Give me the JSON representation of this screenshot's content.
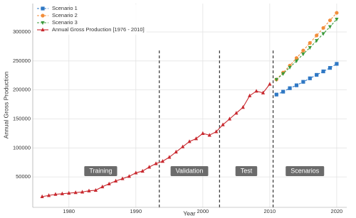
{
  "chart_data": {
    "type": "line",
    "x_label": "Year",
    "y_label": "Annual Gross Production",
    "xlim": [
      1974.6,
      2021.5
    ],
    "ylim": [
      -2500,
      349000
    ],
    "xticks": [
      1980,
      1990,
      2000,
      2010,
      2020
    ],
    "yticks": [
      50000,
      100000,
      150000,
      200000,
      250000,
      300000
    ],
    "grid": true,
    "legend": "top-left",
    "dividers": [
      1993.5,
      2002.5,
      2010.5
    ],
    "regions": [
      "Training",
      "Validation",
      "Test",
      "Scenarios"
    ],
    "series": [
      {
        "name": "Scenario 1",
        "color": "#2f78c4",
        "marker": "square",
        "dashed": true,
        "x": [
          2011,
          2012,
          2013,
          2014,
          2015,
          2016,
          2017,
          2018,
          2019,
          2020
        ],
        "values": [
          192000,
          197000,
          203000,
          208000,
          214000,
          220000,
          226000,
          232000,
          238000,
          245000
        ]
      },
      {
        "name": "Scenario 2",
        "color": "#f28e3b",
        "marker": "circle",
        "dashed": true,
        "x": [
          2011,
          2012,
          2013,
          2014,
          2015,
          2016,
          2017,
          2018,
          2019,
          2020
        ],
        "values": [
          218000,
          230000,
          242000,
          255000,
          268000,
          281000,
          294000,
          307000,
          320000,
          333000
        ]
      },
      {
        "name": "Scenario 3",
        "color": "#3a9a3a",
        "marker": "triangle-down",
        "dashed": true,
        "x": [
          2011,
          2012,
          2013,
          2014,
          2015,
          2016,
          2017,
          2018,
          2019,
          2020
        ],
        "values": [
          218000,
          228000,
          239000,
          250000,
          262000,
          273000,
          285000,
          297000,
          309000,
          322000
        ]
      },
      {
        "name": "Annual Gross Production [1976 - 2010]",
        "color": "#c8282e",
        "marker": "triangle-up",
        "dashed": false,
        "x": [
          1976,
          1977,
          1978,
          1979,
          1980,
          1981,
          1982,
          1983,
          1984,
          1985,
          1986,
          1987,
          1988,
          1989,
          1990,
          1991,
          1992,
          1993,
          1994,
          1995,
          1996,
          1997,
          1998,
          1999,
          2000,
          2001,
          2002,
          2003,
          2004,
          2005,
          2006,
          2007,
          2008,
          2009,
          2010
        ],
        "values": [
          16000,
          18000,
          20000,
          21000,
          22000,
          23000,
          24000,
          26000,
          27000,
          33000,
          38000,
          43000,
          47000,
          51000,
          57000,
          60000,
          67000,
          73000,
          77000,
          84000,
          93000,
          102000,
          111000,
          116000,
          125000,
          122000,
          128000,
          140000,
          150000,
          160000,
          170000,
          190000,
          198000,
          195000,
          210000
        ]
      }
    ]
  }
}
